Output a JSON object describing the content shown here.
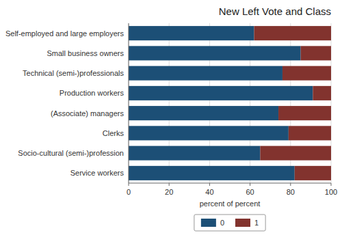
{
  "chart_data": {
    "type": "bar",
    "orientation": "horizontal",
    "stacked": true,
    "title": "New Left Vote and Class",
    "xlabel": "percent of percent",
    "categories": [
      "Self-employed and large employers",
      "Small business owners",
      "Technical (semi-)professionals",
      "Production workers",
      "(Associate) managers",
      "Clerks",
      "Socio-cultural (semi-)profession",
      "Service workers"
    ],
    "series": [
      {
        "name": "0",
        "color": "#1c4f76",
        "values": [
          62,
          85,
          76,
          91,
          74,
          79,
          65,
          82
        ]
      },
      {
        "name": "1",
        "color": "#82332e",
        "values": [
          38,
          15,
          24,
          9,
          26,
          21,
          35,
          18
        ]
      }
    ],
    "xlim": [
      0,
      100
    ],
    "xticks": [
      0,
      20,
      40,
      60,
      80,
      100
    ],
    "grid": true,
    "legend": "bottom"
  }
}
